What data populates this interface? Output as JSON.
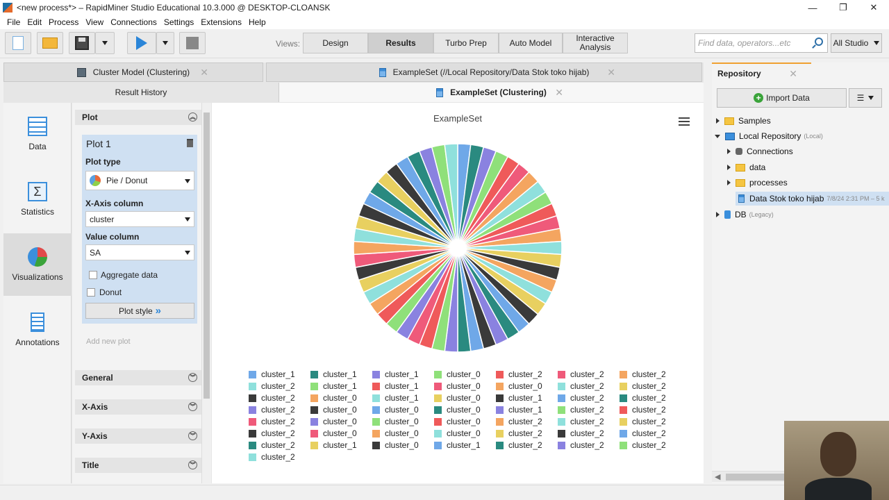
{
  "window": {
    "title": "<new process*> – RapidMiner Studio Educational 10.3.000 @ DESKTOP-CLOANSK"
  },
  "menu": [
    "File",
    "Edit",
    "Process",
    "View",
    "Connections",
    "Settings",
    "Extensions",
    "Help"
  ],
  "toolbar": {
    "views_label": "Views:",
    "views": [
      "Design",
      "Results",
      "Turbo Prep",
      "Auto Model",
      "Interactive Analysis"
    ],
    "search_placeholder": "Find data, operators...etc",
    "scope": "All Studio"
  },
  "tabs": {
    "top": [
      "Cluster Model (Clustering)",
      "ExampleSet (//Local Repository/Data Stok toko hijab)"
    ],
    "second": [
      "Result History",
      "ExampleSet (Clustering)"
    ]
  },
  "side_nav": [
    "Data",
    "Statistics",
    "Visualizations",
    "Annotations"
  ],
  "plot_config": {
    "section": "Plot",
    "plot_name": "Plot 1",
    "plot_type_label": "Plot type",
    "plot_type": "Pie / Donut",
    "x_axis_label": "X-Axis column",
    "x_axis": "cluster",
    "value_label": "Value column",
    "value": "SA",
    "aggregate_label": "Aggregate data",
    "donut_label": "Donut",
    "plot_style": "Plot style",
    "add_new": "Add new plot",
    "sections": [
      "General",
      "X-Axis",
      "Y-Axis",
      "Title"
    ]
  },
  "chart_data": {
    "type": "pie",
    "title": "ExampleSet",
    "categories": [
      "cluster_1",
      "cluster_1",
      "cluster_1",
      "cluster_0",
      "cluster_2",
      "cluster_2",
      "cluster_2",
      "cluster_2",
      "cluster_1",
      "cluster_1",
      "cluster_0",
      "cluster_0",
      "cluster_2",
      "cluster_2",
      "cluster_2",
      "cluster_0",
      "cluster_1",
      "cluster_0",
      "cluster_1",
      "cluster_2",
      "cluster_2",
      "cluster_2",
      "cluster_0",
      "cluster_0",
      "cluster_0",
      "cluster_1",
      "cluster_2",
      "cluster_2",
      "cluster_2",
      "cluster_0",
      "cluster_0",
      "cluster_0",
      "cluster_2",
      "cluster_2",
      "cluster_2",
      "cluster_2",
      "cluster_0",
      "cluster_0",
      "cluster_0",
      "cluster_2",
      "cluster_2",
      "cluster_2",
      "cluster_2",
      "cluster_1",
      "cluster_0",
      "cluster_1",
      "cluster_2",
      "cluster_2",
      "cluster_2",
      "cluster_2"
    ],
    "colors": [
      "#6fa8e8",
      "#2a8a80",
      "#8a82e0",
      "#8fe07a",
      "#ef5a5a",
      "#ef5a7a",
      "#f4a560",
      "#8fe0dc",
      "#8fe07a",
      "#ef5a5a",
      "#ef5a7a",
      "#f4a560",
      "#8fe0dc",
      "#e8d060",
      "#3a3a3a",
      "#f4a560",
      "#8fe0dc",
      "#e8d060",
      "#3a3a3a",
      "#6fa8e8",
      "#2a8a80",
      "#8a82e0",
      "#3a3a3a",
      "#6fa8e8",
      "#2a8a80",
      "#8a82e0",
      "#8fe07a",
      "#ef5a5a",
      "#ef5a7a",
      "#8a82e0",
      "#8fe07a",
      "#ef5a5a",
      "#f4a560",
      "#8fe0dc",
      "#e8d060",
      "#3a3a3a",
      "#ef5a7a",
      "#f4a560",
      "#8fe0dc",
      "#e8d060",
      "#3a3a3a",
      "#6fa8e8",
      "#2a8a80",
      "#e8d060",
      "#3a3a3a",
      "#6fa8e8",
      "#2a8a80",
      "#8a82e0",
      "#8fe07a",
      "#8fe0dc"
    ],
    "legend_columns": 7
  },
  "repository": {
    "title": "Repository",
    "import": "Import Data",
    "tree": [
      {
        "label": "Samples",
        "meta": ""
      },
      {
        "label": "Local Repository",
        "meta": "(Local)"
      },
      {
        "label": "Connections",
        "meta": ""
      },
      {
        "label": "data",
        "meta": ""
      },
      {
        "label": "processes",
        "meta": ""
      },
      {
        "label": "Data Stok toko hijab",
        "meta": "7/8/24 2:31 PM – 5 k"
      },
      {
        "label": "DB",
        "meta": "(Legacy)"
      }
    ]
  }
}
